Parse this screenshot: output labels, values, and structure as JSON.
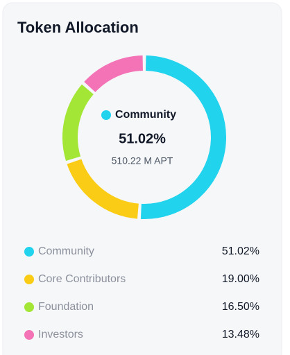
{
  "chart_data": {
    "type": "donut",
    "title": "Token Allocation",
    "categories": [
      "Community",
      "Core Contributors",
      "Foundation",
      "Investors"
    ],
    "values": [
      51.02,
      19.0,
      16.5,
      13.48
    ],
    "value_labels": [
      "51.02%",
      "19.00%",
      "16.50%",
      "13.48%"
    ],
    "colors": [
      "#22d3ee",
      "#facc15",
      "#a3e635",
      "#f472b6"
    ],
    "center_detail": "510.22 M APT"
  }
}
